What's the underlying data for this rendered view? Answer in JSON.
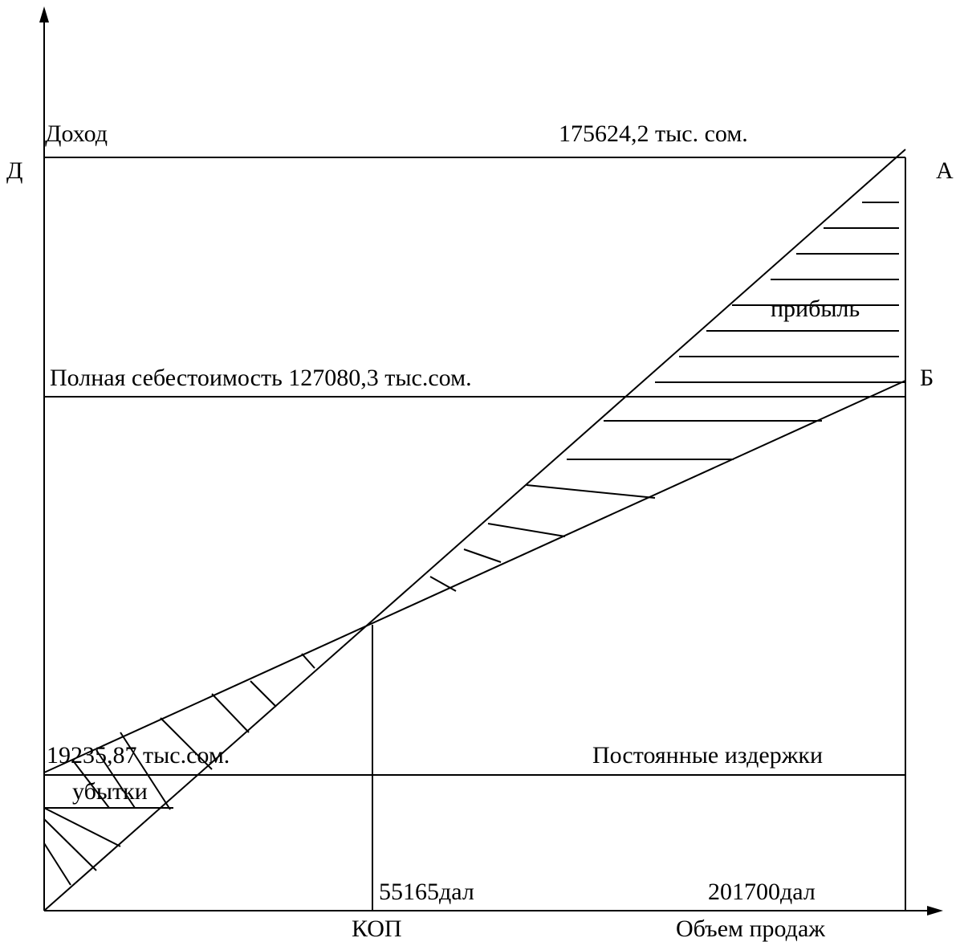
{
  "chart_data": {
    "type": "line",
    "title": "",
    "xlabel": "Объем продаж",
    "ylabel": "",
    "x_range": [
      0,
      201700
    ],
    "y_range": [
      0,
      175624.2
    ],
    "grid": false,
    "series": [
      {
        "name": "Доход",
        "x": [
          0,
          201700
        ],
        "y": [
          0,
          175624.2
        ]
      },
      {
        "name": "Полная себестоимость",
        "x": [
          0,
          201700
        ],
        "y": [
          19235.87,
          127080.3
        ]
      }
    ],
    "horizontal_lines": [
      {
        "label": "Постоянные издержки",
        "y": 19235.87
      },
      {
        "label": "Полная себестоимость",
        "y": 127080.3
      },
      {
        "label": "Доход",
        "y": 175624.2
      }
    ],
    "break_even": {
      "label": "КОП",
      "x": 55165
    },
    "regions": {
      "profit": "прибыль",
      "loss": "убытки"
    }
  },
  "labels": {
    "revenue_axis": "Доход",
    "revenue_value": "175624,2 тыс. сом.",
    "point_d": "Д",
    "point_a": "А",
    "point_b": "Б",
    "profit": "прибыль",
    "full_cost": "Полная себестоимость 127080,3 тыс.сом.",
    "fixed_value": "19235,87 тыс.сом.",
    "fixed_costs": "Постоянные издержки",
    "loss": "убытки",
    "bep_volume": "55165дал",
    "max_volume": "201700дал",
    "bep_label": "КОП",
    "x_axis": "Объем продаж"
  }
}
